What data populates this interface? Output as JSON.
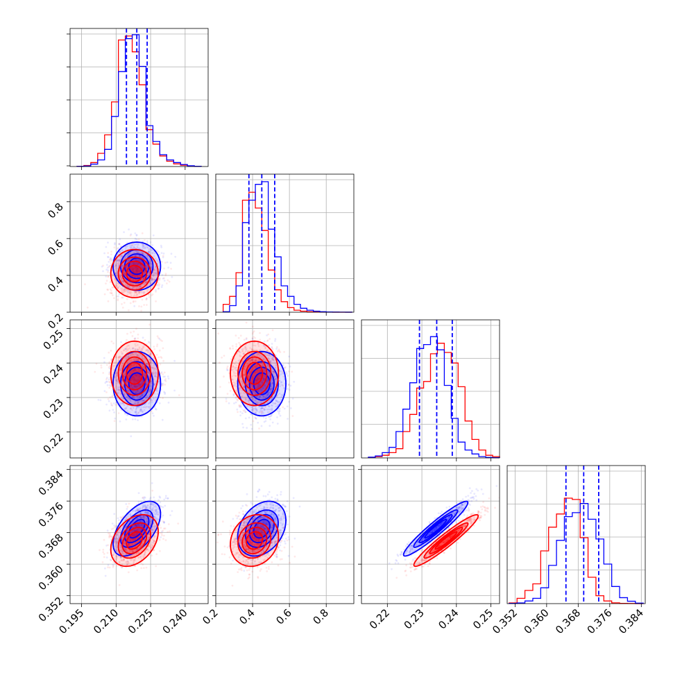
{
  "chart_data": {
    "type": "corner",
    "grid": true,
    "colors": {
      "blue": "#0000ff",
      "red": "#ff0000"
    },
    "parameters": [
      {
        "index": 0,
        "range": [
          0.19,
          0.25
        ],
        "ticks": [
          "0.195",
          "0.210",
          "0.225",
          "0.240"
        ]
      },
      {
        "index": 1,
        "range": [
          0.2,
          0.95
        ],
        "ticks": [
          "0.2",
          "0.4",
          "0.6",
          "0.8"
        ]
      },
      {
        "index": 2,
        "range": [
          0.2125,
          0.2525
        ],
        "ticks": [
          "0.22",
          "0.23",
          "0.24",
          "0.25"
        ]
      },
      {
        "index": 3,
        "range": [
          0.35,
          0.385
        ],
        "ticks": [
          "0.352",
          "0.360",
          "0.368",
          "0.376",
          "0.384"
        ]
      }
    ],
    "series": [
      {
        "color": "blue",
        "mean": [
          0.219,
          0.45,
          0.234,
          0.369
        ],
        "sd": [
          0.0052,
          0.066,
          0.0047,
          0.0035
        ],
        "correlations": [
          [
            0,
            3,
            0.55
          ],
          [
            1,
            3,
            0.3
          ],
          [
            2,
            3,
            0.95
          ]
        ],
        "quantiles": [
          [
            0.2145,
            0.219,
            0.2235
          ],
          [
            0.38,
            0.45,
            0.52
          ],
          [
            0.2293,
            0.2343,
            0.2388
          ],
          [
            0.3649,
            0.3694,
            0.3732
          ]
        ]
      },
      {
        "color": "red",
        "mean": [
          0.218,
          0.41,
          0.237,
          0.366
        ],
        "sd": [
          0.0052,
          0.066,
          0.0047,
          0.0033
        ],
        "correlations": [
          [
            0,
            3,
            0.35
          ],
          [
            1,
            3,
            0.15
          ],
          [
            2,
            3,
            0.95
          ]
        ],
        "quantiles": []
      }
    ],
    "marginals": [
      {
        "bins": [
          0.193,
          0.196,
          0.199,
          0.202,
          0.205,
          0.208,
          0.211,
          0.214,
          0.217,
          0.22,
          0.223,
          0.226,
          0.229,
          0.232,
          0.235,
          0.238,
          0.241,
          0.244,
          0.247
        ],
        "blue": [
          0.001,
          0.004,
          0.018,
          0.05,
          0.13,
          0.38,
          0.72,
          0.97,
          1.0,
          0.76,
          0.31,
          0.19,
          0.09,
          0.05,
          0.03,
          0.015,
          0.006,
          0.002
        ],
        "red": [
          0.002,
          0.008,
          0.03,
          0.1,
          0.24,
          0.49,
          0.96,
          0.99,
          0.87,
          0.62,
          0.28,
          0.17,
          0.08,
          0.04,
          0.02,
          0.01,
          0.004,
          0.001
        ]
      },
      {
        "bins": [
          0.24,
          0.275,
          0.31,
          0.345,
          0.38,
          0.415,
          0.45,
          0.485,
          0.52,
          0.555,
          0.59,
          0.625,
          0.66,
          0.695,
          0.73,
          0.765,
          0.8,
          0.835,
          0.87,
          0.905,
          0.94
        ],
        "blue": [
          0.004,
          0.05,
          0.2,
          0.68,
          0.85,
          0.97,
          0.99,
          0.63,
          0.42,
          0.2,
          0.12,
          0.06,
          0.03,
          0.015,
          0.008,
          0.004,
          0.002,
          0.001,
          0.0005,
          0.0002
        ],
        "red": [
          0.06,
          0.12,
          0.3,
          0.85,
          0.91,
          0.79,
          0.62,
          0.32,
          0.17,
          0.08,
          0.035,
          0.015,
          0.008,
          0.004,
          0.002,
          0.001,
          0.0005,
          0.0002,
          0.0001,
          0.0
        ]
      },
      {
        "bins": [
          0.2145,
          0.2165,
          0.2185,
          0.2205,
          0.2225,
          0.2245,
          0.2265,
          0.2285,
          0.2305,
          0.2325,
          0.2345,
          0.2365,
          0.2385,
          0.2405,
          0.2425,
          0.2445,
          0.2465,
          0.2485,
          0.2505,
          0.2525
        ],
        "blue": [
          0.006,
          0.015,
          0.04,
          0.08,
          0.2,
          0.37,
          0.57,
          0.83,
          0.86,
          0.92,
          0.82,
          0.55,
          0.3,
          0.12,
          0.06,
          0.03,
          0.01,
          0.004,
          0.002
        ],
        "red": [
          0.004,
          0.01,
          0.02,
          0.04,
          0.07,
          0.2,
          0.33,
          0.53,
          0.58,
          0.79,
          0.87,
          0.8,
          0.72,
          0.54,
          0.28,
          0.14,
          0.06,
          0.02,
          0.01
        ]
      },
      {
        "bins": [
          0.3505,
          0.3525,
          0.3545,
          0.3565,
          0.3585,
          0.3605,
          0.3625,
          0.3645,
          0.3665,
          0.3685,
          0.3705,
          0.3725,
          0.3745,
          0.3765,
          0.3785,
          0.3805,
          0.3825,
          0.3845
        ],
        "blue": [
          0.002,
          0.005,
          0.02,
          0.04,
          0.12,
          0.29,
          0.48,
          0.66,
          0.69,
          0.76,
          0.64,
          0.49,
          0.3,
          0.13,
          0.045,
          0.018,
          0.004
        ],
        "red": [
          0.005,
          0.04,
          0.1,
          0.15,
          0.4,
          0.58,
          0.68,
          0.8,
          0.79,
          0.5,
          0.2,
          0.06,
          0.02,
          0.006,
          0.002,
          0.001,
          0.0
        ]
      }
    ]
  }
}
